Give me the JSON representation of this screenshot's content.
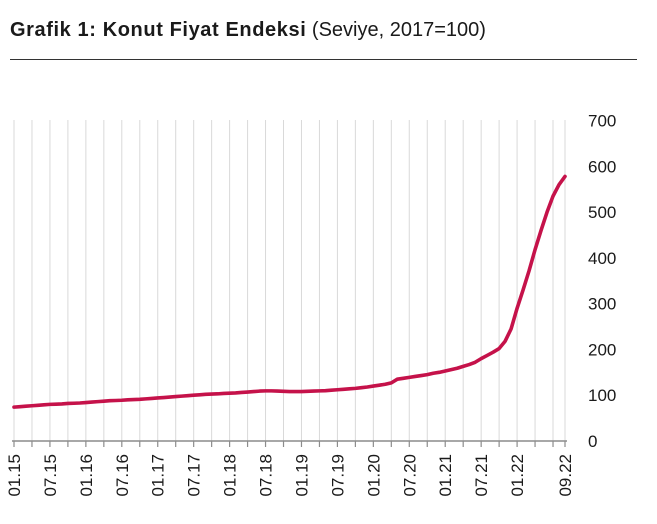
{
  "chart_data": {
    "type": "line",
    "title": "Grafik 1: Konut Fiyat Endeksi",
    "subtitle": "(Seviye, 2017=100)",
    "ylim": [
      0,
      700
    ],
    "y_ticks": [
      0,
      100,
      200,
      300,
      400,
      500,
      600,
      700
    ],
    "x_range_months": [
      0,
      92
    ],
    "x_ticks": [
      {
        "label": "01.15",
        "month": 0
      },
      {
        "label": "07.15",
        "month": 6
      },
      {
        "label": "01.16",
        "month": 12
      },
      {
        "label": "07.16",
        "month": 18
      },
      {
        "label": "01.17",
        "month": 24
      },
      {
        "label": "07.17",
        "month": 30
      },
      {
        "label": "01.18",
        "month": 36
      },
      {
        "label": "07.18",
        "month": 42
      },
      {
        "label": "01.19",
        "month": 48
      },
      {
        "label": "07.19",
        "month": 54
      },
      {
        "label": "01.20",
        "month": 60
      },
      {
        "label": "07.20",
        "month": 66
      },
      {
        "label": "01.21",
        "month": 72
      },
      {
        "label": "07.21",
        "month": 78
      },
      {
        "label": "01.22",
        "month": 84
      },
      {
        "label": "09.22",
        "month": 92
      }
    ],
    "line_color": "#C5124A",
    "values": [
      74,
      75,
      76,
      77,
      78,
      79,
      80,
      80.5,
      81,
      82,
      82.5,
      83,
      84,
      85,
      86,
      87,
      88,
      88.5,
      89,
      90,
      90.5,
      91,
      92,
      93,
      94,
      95,
      96,
      97,
      98,
      99,
      100,
      101,
      102,
      102.5,
      103,
      104,
      104.5,
      105,
      106,
      107,
      108,
      109,
      109.5,
      109.5,
      109,
      108.5,
      108,
      108,
      108,
      108.5,
      109,
      109.5,
      110,
      111,
      112,
      113,
      114,
      115,
      116.5,
      118,
      120,
      122,
      124,
      127,
      135,
      137,
      139,
      141,
      143,
      145,
      148,
      150,
      153,
      156,
      159,
      163,
      167,
      172,
      180,
      187,
      194,
      202,
      218,
      245,
      290,
      330,
      372,
      418,
      460,
      500,
      535,
      560,
      578
    ]
  }
}
